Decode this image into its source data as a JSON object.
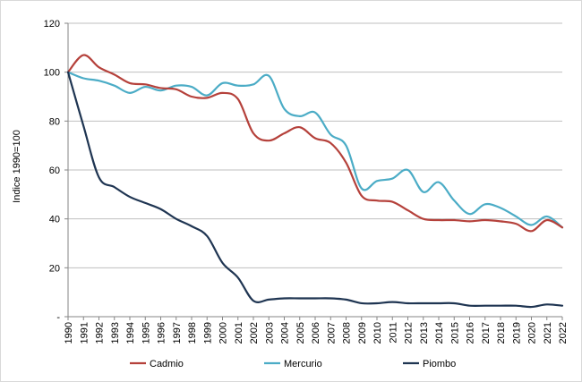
{
  "chart_data": {
    "type": "line",
    "ylabel": "Indice 1990=100",
    "ylim": [
      0,
      120
    ],
    "yticks": [
      "-",
      "20",
      "40",
      "60",
      "80",
      "100",
      "120"
    ],
    "grid": "horizontal",
    "legend": "bottom",
    "categories": [
      "1990",
      "1991",
      "1992",
      "1993",
      "1994",
      "1995",
      "1996",
      "1997",
      "1998",
      "1999",
      "2000",
      "2001",
      "2002",
      "2003",
      "2004",
      "2005",
      "2006",
      "2007",
      "2008",
      "2009",
      "2010",
      "2011",
      "2012",
      "2013",
      "2014",
      "2015",
      "2016",
      "2017",
      "2018",
      "2019",
      "2020",
      "2021",
      "2022"
    ],
    "series": [
      {
        "name": "Cadmio",
        "color": "#b5413b",
        "values": [
          100,
          107,
          102,
          99,
          95.5,
          95,
          93.5,
          93,
          90,
          89.5,
          91.5,
          89,
          75,
          72,
          75,
          77.5,
          73,
          71,
          63,
          49.5,
          47.5,
          47,
          43.5,
          40,
          39.5,
          39.5,
          39,
          39.5,
          39,
          38,
          35,
          39.5,
          36.5
        ]
      },
      {
        "name": "Mercurio",
        "color": "#4bacc6",
        "values": [
          100,
          97.5,
          96.5,
          94.5,
          91.5,
          94,
          92.5,
          94.5,
          94,
          90.5,
          95.5,
          94.5,
          95,
          98.5,
          85,
          82,
          83.5,
          74.5,
          70,
          52.5,
          55.5,
          56.5,
          60,
          51,
          55,
          47.5,
          42,
          46,
          44.5,
          41,
          37.5,
          41,
          36.5
        ]
      },
      {
        "name": "Piombo",
        "color": "#1f3552",
        "values": [
          100,
          78,
          57,
          53,
          49,
          46.5,
          44,
          40,
          37,
          33,
          22,
          16,
          6.5,
          7,
          7.5,
          7.5,
          7.5,
          7.5,
          7,
          5.5,
          5.5,
          6,
          5.5,
          5.5,
          5.5,
          5.5,
          4.5,
          4.5,
          4.5,
          4.5,
          4,
          5,
          4.5
        ]
      }
    ]
  }
}
